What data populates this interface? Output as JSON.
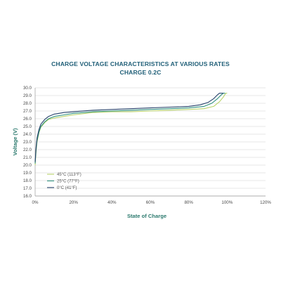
{
  "chart_data": {
    "type": "line",
    "title": "CHARGE VOLTAGE CHARACTERISTICS AT VARIOUS RATES",
    "subtitle": "CHARGE 0.2C",
    "xlabel": "State of Charge",
    "ylabel": "Voltage (V)",
    "xlim": [
      0,
      120
    ],
    "ylim": [
      16,
      30
    ],
    "x_ticks": [
      "0%",
      "20%",
      "40%",
      "60%",
      "80%",
      "100%",
      "120%"
    ],
    "x_tick_values": [
      0,
      20,
      40,
      60,
      80,
      100,
      120
    ],
    "y_ticks": [
      "16.0",
      "17.0",
      "18.0",
      "19.0",
      "20.0",
      "21.0",
      "22.0",
      "23.0",
      "24.0",
      "25.0",
      "26.0",
      "27.0",
      "28.0",
      "29.0",
      "30.0"
    ],
    "y_tick_values": [
      16,
      17,
      18,
      19,
      20,
      21,
      22,
      23,
      24,
      25,
      26,
      27,
      28,
      29,
      30
    ],
    "grid": "horizontal",
    "legend_position": "bottom-left",
    "series": [
      {
        "name": "45°C (113°F)",
        "color": "#b9d36a",
        "x": [
          0,
          0.5,
          1,
          2,
          3,
          5,
          7,
          10,
          15,
          20,
          30,
          40,
          50,
          60,
          70,
          80,
          88,
          93,
          96,
          98,
          99,
          99.5,
          100
        ],
        "y": [
          20.0,
          21.8,
          23.0,
          24.2,
          24.9,
          25.5,
          25.9,
          26.1,
          26.3,
          26.5,
          26.8,
          26.9,
          26.9,
          27.0,
          27.1,
          27.2,
          27.3,
          27.6,
          28.2,
          28.8,
          29.2,
          29.3,
          29.3
        ]
      },
      {
        "name": "25°C (77°F)",
        "color": "#2f8f7e",
        "x": [
          0,
          0.5,
          1,
          2,
          3,
          5,
          7,
          10,
          15,
          20,
          30,
          40,
          50,
          60,
          70,
          80,
          88,
          92,
          95,
          97,
          98,
          98.5,
          99
        ],
        "y": [
          20.2,
          22.0,
          23.2,
          24.3,
          25.0,
          25.6,
          26.0,
          26.3,
          26.5,
          26.7,
          26.9,
          27.0,
          27.1,
          27.2,
          27.3,
          27.4,
          27.6,
          28.0,
          28.6,
          29.1,
          29.3,
          29.3,
          29.3
        ]
      },
      {
        "name": "0°C (41°F)",
        "color": "#25426b",
        "x": [
          0,
          0.5,
          1,
          2,
          3,
          5,
          7,
          10,
          15,
          20,
          30,
          40,
          50,
          60,
          70,
          80,
          86,
          90,
          93,
          95,
          96,
          97,
          98
        ],
        "y": [
          20.4,
          22.3,
          23.5,
          24.6,
          25.3,
          25.9,
          26.3,
          26.6,
          26.8,
          26.9,
          27.1,
          27.2,
          27.3,
          27.4,
          27.5,
          27.6,
          27.8,
          28.1,
          28.6,
          29.1,
          29.3,
          29.3,
          29.3
        ]
      }
    ]
  },
  "colors": {
    "title": "#1f5e77",
    "axis_label": "#2c7a6e",
    "grid": "#cfcfcf",
    "axis": "#9a9a9a"
  }
}
